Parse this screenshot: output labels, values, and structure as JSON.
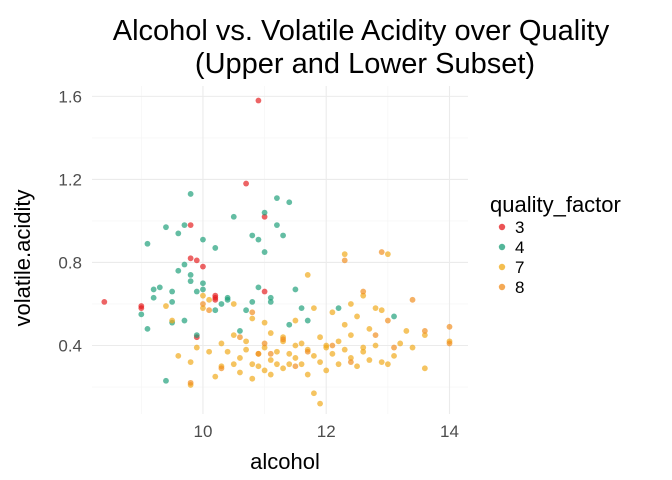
{
  "chart_data": {
    "type": "scatter",
    "title": "Alcohol vs. Volatile Acidity over Quality\n(Upper and Lower Subset)",
    "xlabel": "alcohol",
    "ylabel": "volatile.acidity",
    "xlim": [
      8.2,
      14.3
    ],
    "ylim": [
      0.07,
      1.65
    ],
    "x_ticks": [
      10,
      12,
      14
    ],
    "y_ticks": [
      0.4,
      0.8,
      1.2,
      1.6
    ],
    "x_tick_labels": [
      "10",
      "12",
      "14"
    ],
    "y_tick_labels": [
      "0.4",
      "0.8",
      "1.2",
      "1.6"
    ],
    "grid": true,
    "legend": {
      "title": "quality_factor",
      "position": "right"
    },
    "series": [
      {
        "name": "3",
        "color": "#e41a1c",
        "points": [
          [
            8.4,
            0.61
          ],
          [
            9.0,
            0.59
          ],
          [
            9.0,
            0.58
          ],
          [
            9.8,
            0.98
          ],
          [
            9.8,
            0.82
          ],
          [
            9.9,
            0.81
          ],
          [
            10.0,
            0.78
          ],
          [
            10.2,
            0.64
          ],
          [
            10.7,
            1.18
          ],
          [
            10.9,
            1.58
          ],
          [
            11.0,
            1.02
          ],
          [
            11.0,
            0.66
          ],
          [
            9.9,
            0.44
          ],
          [
            10.2,
            0.63
          ],
          [
            10.2,
            0.62
          ]
        ]
      },
      {
        "name": "4",
        "color": "#1b9e77",
        "points": [
          [
            9.0,
            0.55
          ],
          [
            9.1,
            0.48
          ],
          [
            9.1,
            0.89
          ],
          [
            9.2,
            0.67
          ],
          [
            9.3,
            0.68
          ],
          [
            9.4,
            0.23
          ],
          [
            9.4,
            0.97
          ],
          [
            9.5,
            0.66
          ],
          [
            9.5,
            0.61
          ],
          [
            9.6,
            0.94
          ],
          [
            9.6,
            0.76
          ],
          [
            9.7,
            0.79
          ],
          [
            9.7,
            0.52
          ],
          [
            9.7,
            0.98
          ],
          [
            9.8,
            1.13
          ],
          [
            9.8,
            0.71
          ],
          [
            9.8,
            0.74
          ],
          [
            9.9,
            0.66
          ],
          [
            9.9,
            0.45
          ],
          [
            10.0,
            0.91
          ],
          [
            10.0,
            0.67
          ],
          [
            10.0,
            0.7
          ],
          [
            10.2,
            0.87
          ],
          [
            10.2,
            0.57
          ],
          [
            10.3,
            0.6
          ],
          [
            10.4,
            0.63
          ],
          [
            10.4,
            0.62
          ],
          [
            10.5,
            1.02
          ],
          [
            10.7,
            0.57
          ],
          [
            10.8,
            0.93
          ],
          [
            10.9,
            0.91
          ],
          [
            10.9,
            0.68
          ],
          [
            11.0,
            0.85
          ],
          [
            11.0,
            1.04
          ],
          [
            11.1,
            0.63
          ],
          [
            11.1,
            0.61
          ],
          [
            11.2,
            0.98
          ],
          [
            11.2,
            1.11
          ],
          [
            11.3,
            0.93
          ],
          [
            11.4,
            1.09
          ],
          [
            11.4,
            0.5
          ],
          [
            11.5,
            0.67
          ],
          [
            11.6,
            0.58
          ],
          [
            12.2,
            0.58
          ],
          [
            13.1,
            0.54
          ],
          [
            9.2,
            0.63
          ],
          [
            9.5,
            0.51
          ],
          [
            10.6,
            0.47
          ],
          [
            10.8,
            0.61
          ],
          [
            11.7,
            0.52
          ]
        ]
      },
      {
        "name": "7",
        "color": "#f0a816",
        "points": [
          [
            9.4,
            0.59
          ],
          [
            9.5,
            0.52
          ],
          [
            9.6,
            0.35
          ],
          [
            9.8,
            0.32
          ],
          [
            9.9,
            0.39
          ],
          [
            10.0,
            0.64
          ],
          [
            10.0,
            0.58
          ],
          [
            10.1,
            0.62
          ],
          [
            10.1,
            0.37
          ],
          [
            10.2,
            0.25
          ],
          [
            10.3,
            0.41
          ],
          [
            10.4,
            0.37
          ],
          [
            10.5,
            0.31
          ],
          [
            10.5,
            0.45
          ],
          [
            10.5,
            0.6
          ],
          [
            10.6,
            0.27
          ],
          [
            10.6,
            0.34
          ],
          [
            10.7,
            0.38
          ],
          [
            10.7,
            0.42
          ],
          [
            10.8,
            0.53
          ],
          [
            10.8,
            0.31
          ],
          [
            10.8,
            0.24
          ],
          [
            10.9,
            0.3
          ],
          [
            10.9,
            0.36
          ],
          [
            11.0,
            0.39
          ],
          [
            11.0,
            0.28
          ],
          [
            11.1,
            0.33
          ],
          [
            11.1,
            0.46
          ],
          [
            11.1,
            0.26
          ],
          [
            11.2,
            0.31
          ],
          [
            11.2,
            0.37
          ],
          [
            11.3,
            0.42
          ],
          [
            11.3,
            0.29
          ],
          [
            11.4,
            0.36
          ],
          [
            11.4,
            0.31
          ],
          [
            11.5,
            0.4
          ],
          [
            11.5,
            0.34
          ],
          [
            11.5,
            0.52
          ],
          [
            11.6,
            0.41
          ],
          [
            11.6,
            0.31
          ],
          [
            11.7,
            0.38
          ],
          [
            11.7,
            0.26
          ],
          [
            11.7,
            0.74
          ],
          [
            11.8,
            0.35
          ],
          [
            11.8,
            0.58
          ],
          [
            11.8,
            0.17
          ],
          [
            11.9,
            0.32
          ],
          [
            11.9,
            0.44
          ],
          [
            12.0,
            0.28
          ],
          [
            12.0,
            0.39
          ],
          [
            12.0,
            0.4
          ],
          [
            12.1,
            0.36
          ],
          [
            12.1,
            0.56
          ],
          [
            12.2,
            0.31
          ],
          [
            12.2,
            0.42
          ],
          [
            12.3,
            0.38
          ],
          [
            12.3,
            0.84
          ],
          [
            12.4,
            0.34
          ],
          [
            12.4,
            0.6
          ],
          [
            12.5,
            0.3
          ],
          [
            12.5,
            0.54
          ],
          [
            12.6,
            0.37
          ],
          [
            12.6,
            0.64
          ],
          [
            12.7,
            0.48
          ],
          [
            12.7,
            0.33
          ],
          [
            12.8,
            0.58
          ],
          [
            12.8,
            0.4
          ],
          [
            12.9,
            0.57
          ],
          [
            13.0,
            0.84
          ],
          [
            13.0,
            0.31
          ],
          [
            13.1,
            0.35
          ],
          [
            13.2,
            0.41
          ],
          [
            13.3,
            0.47
          ],
          [
            13.4,
            0.39
          ],
          [
            13.6,
            0.45
          ],
          [
            13.6,
            0.29
          ],
          [
            14.0,
            0.42
          ],
          [
            11.9,
            0.12
          ],
          [
            12.4,
            0.45
          ],
          [
            12.3,
            0.5
          ],
          [
            9.8,
            0.21
          ],
          [
            10.3,
            0.3
          ],
          [
            11.3,
            0.44
          ],
          [
            11.0,
            0.51
          ],
          [
            12.6,
            0.39
          ],
          [
            12.9,
            0.32
          ]
        ]
      },
      {
        "name": "8",
        "color": "#f08c1c",
        "points": [
          [
            9.8,
            0.22
          ],
          [
            10.0,
            0.6
          ],
          [
            10.1,
            0.57
          ],
          [
            10.3,
            0.29
          ],
          [
            10.6,
            0.44
          ],
          [
            10.8,
            0.56
          ],
          [
            11.0,
            0.41
          ],
          [
            11.1,
            0.36
          ],
          [
            11.3,
            0.43
          ],
          [
            11.7,
            0.37
          ],
          [
            12.1,
            0.4
          ],
          [
            12.3,
            0.81
          ],
          [
            12.4,
            0.32
          ],
          [
            12.6,
            0.66
          ],
          [
            12.9,
            0.85
          ],
          [
            13.0,
            0.52
          ],
          [
            13.1,
            0.39
          ],
          [
            13.4,
            0.62
          ],
          [
            13.6,
            0.47
          ],
          [
            14.0,
            0.49
          ],
          [
            14.0,
            0.41
          ],
          [
            12.8,
            0.45
          ],
          [
            11.5,
            0.3
          ],
          [
            10.9,
            0.36
          ]
        ]
      }
    ]
  }
}
